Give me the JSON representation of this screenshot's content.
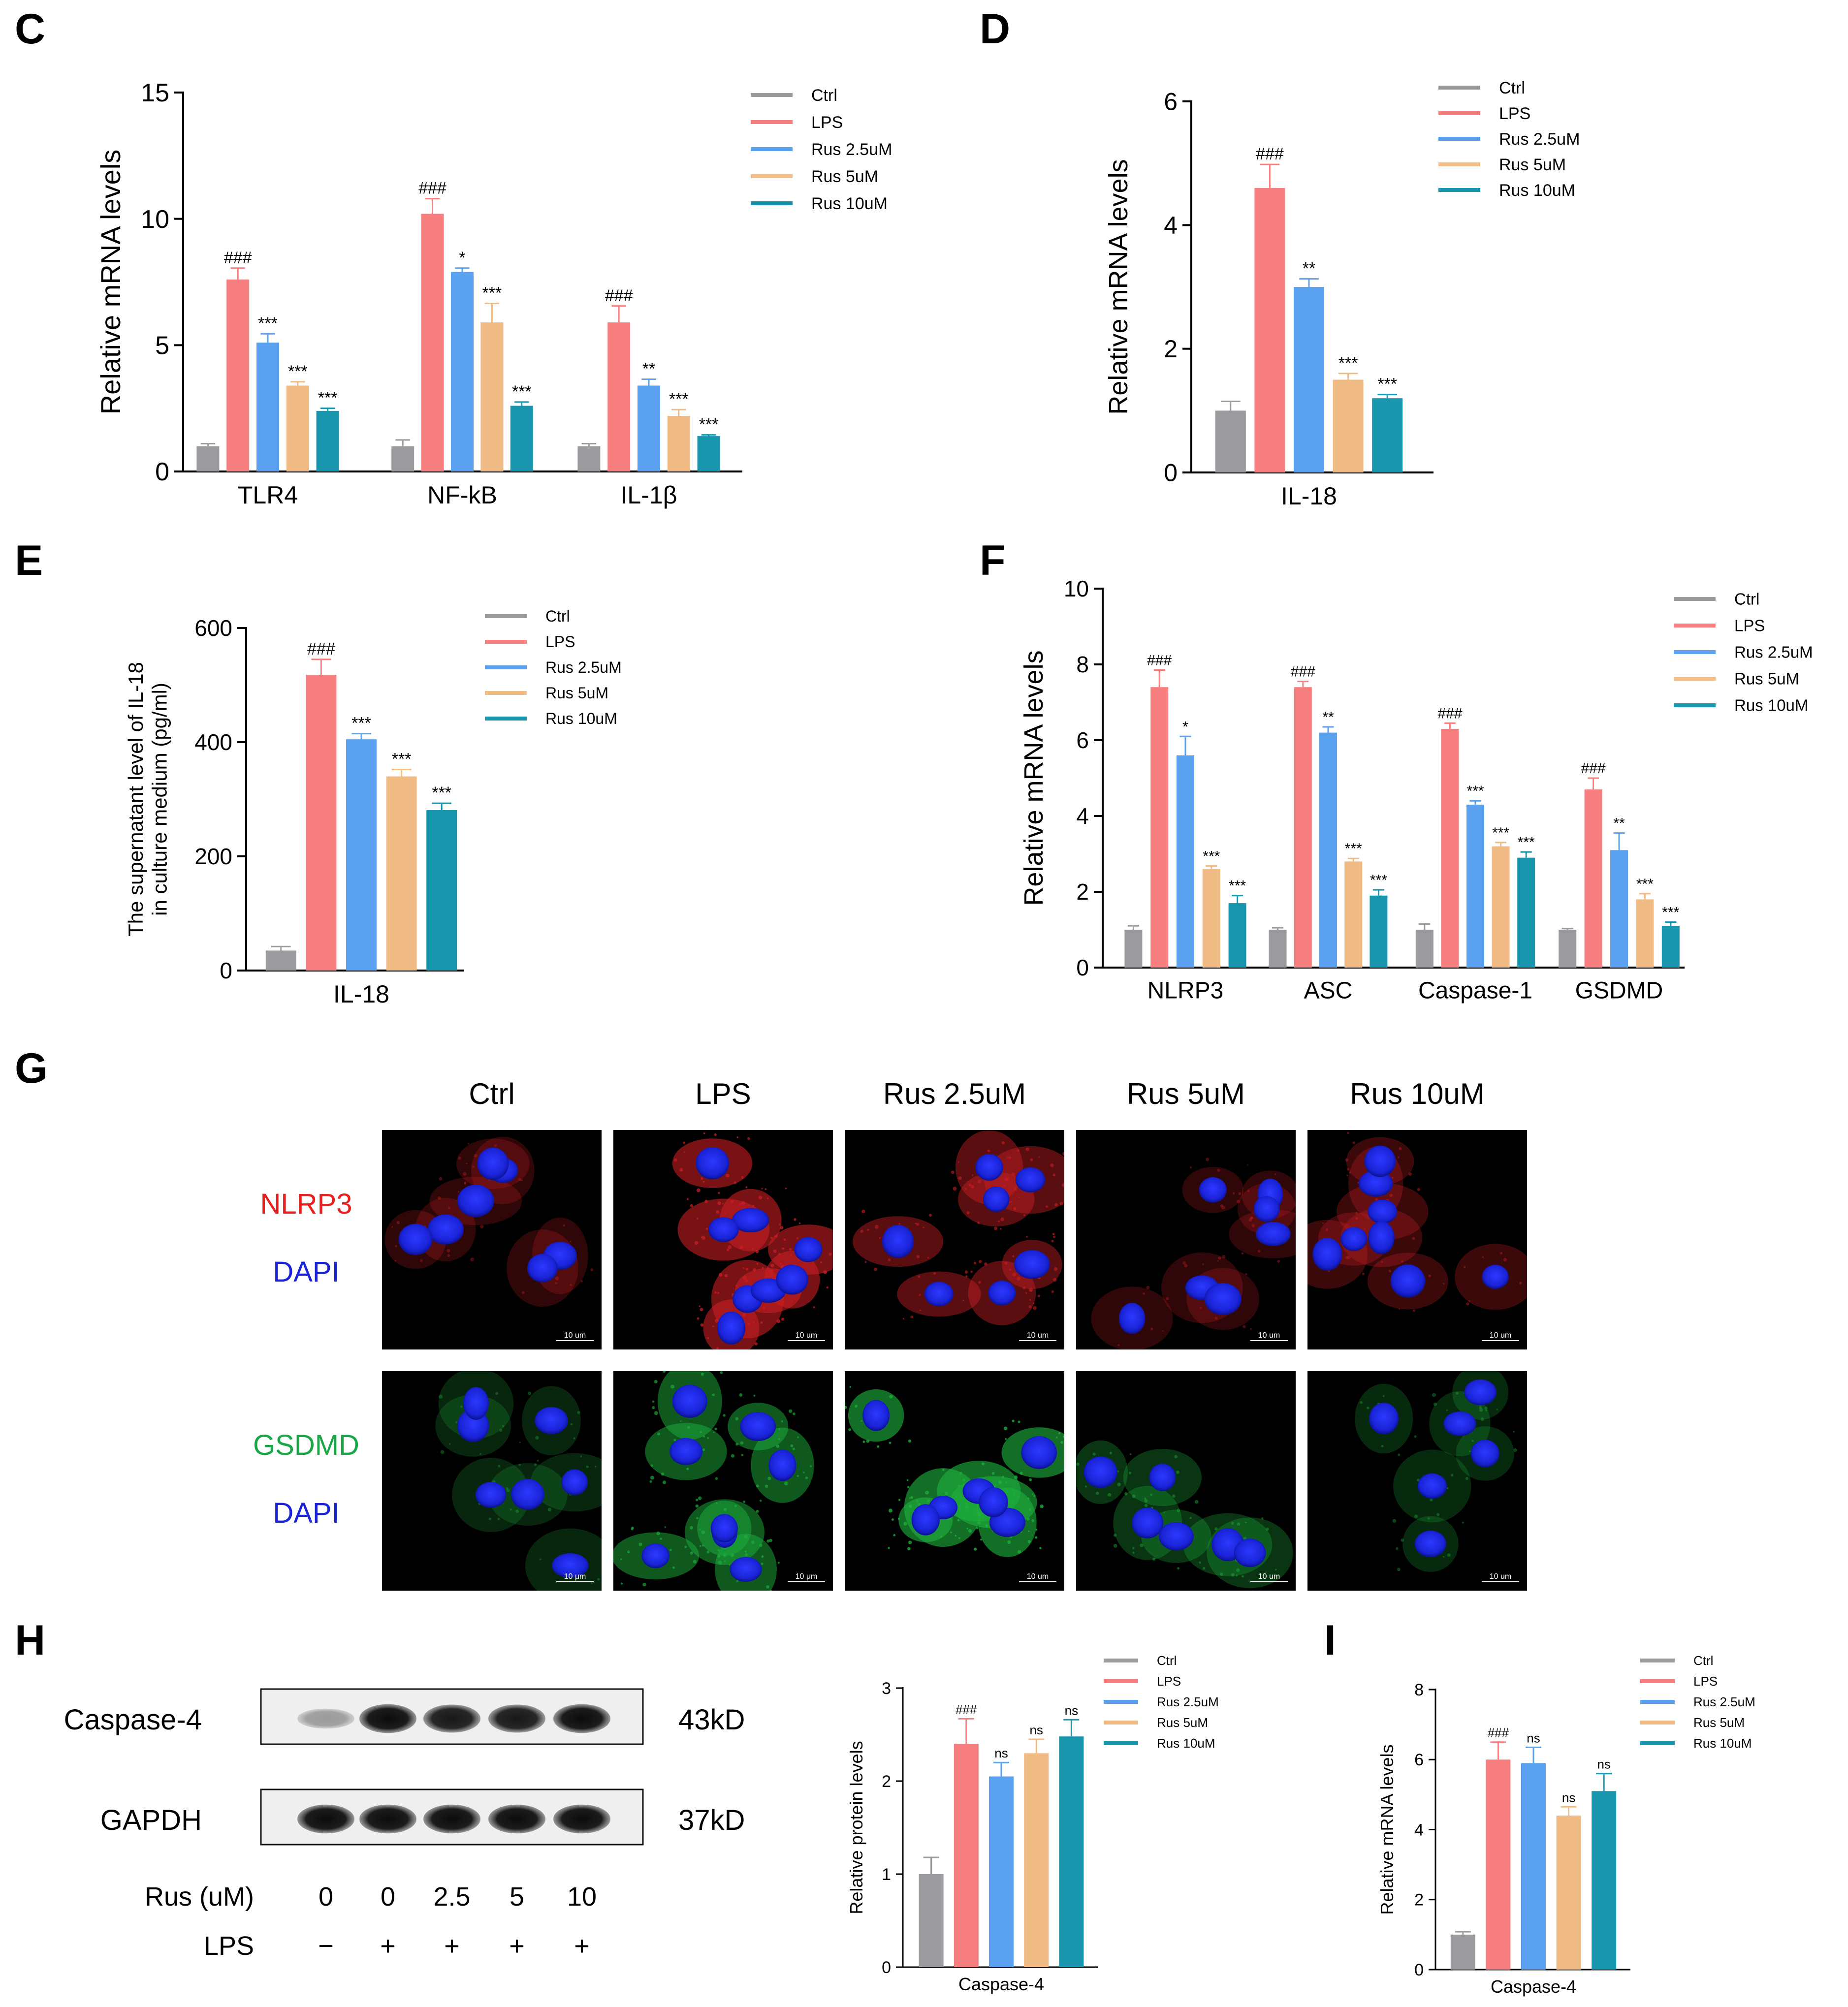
{
  "colors": {
    "Ctrl": "#9a9a9f",
    "LPS": "#f77f80",
    "Rus 2.5uM": "#5aa2ef",
    "Rus 5uM": "#f1bb85",
    "Rus 10uM": "#1896ad",
    "red": "#e8201f",
    "green": "#1aa646",
    "blue": "#1a23d6",
    "black": "#000000"
  },
  "legend_labels": [
    "Ctrl",
    "LPS",
    "Rus 2.5uM",
    "Rus 5uM",
    "Rus 10uM"
  ],
  "chart_data": [
    {
      "id": "C",
      "type": "bar",
      "panel_label": "C",
      "ylabel": "Relative  mRNA levels",
      "ylim": [
        0,
        15
      ],
      "yticks": [
        0,
        5,
        10,
        15
      ],
      "categories": [
        "TLR4",
        "NF-kB",
        "IL-1β"
      ],
      "series": [
        {
          "name": "Ctrl",
          "values": [
            1.0,
            1.0,
            1.0
          ],
          "err": [
            0.1,
            0.25,
            0.1
          ],
          "sig": [
            "",
            "",
            ""
          ]
        },
        {
          "name": "LPS",
          "values": [
            7.6,
            10.2,
            5.9
          ],
          "err": [
            0.45,
            0.6,
            0.65
          ],
          "sig": [
            "###",
            "###",
            "###"
          ]
        },
        {
          "name": "Rus 2.5uM",
          "values": [
            5.1,
            7.9,
            3.4
          ],
          "err": [
            0.35,
            0.15,
            0.25
          ],
          "sig": [
            "***",
            "*",
            "**"
          ]
        },
        {
          "name": "Rus 5uM",
          "values": [
            3.4,
            5.9,
            2.2
          ],
          "err": [
            0.15,
            0.75,
            0.25
          ],
          "sig": [
            "***",
            "***",
            "***"
          ]
        },
        {
          "name": "Rus 10uM",
          "values": [
            2.4,
            2.6,
            1.4
          ],
          "err": [
            0.1,
            0.15,
            0.05
          ],
          "sig": [
            "***",
            "***",
            "***"
          ]
        }
      ]
    },
    {
      "id": "D",
      "type": "bar",
      "panel_label": "D",
      "ylabel": "Relative  mRNA levels",
      "ylim": [
        0,
        6
      ],
      "yticks": [
        0,
        2,
        4,
        6
      ],
      "categories": [
        "IL-18"
      ],
      "series": [
        {
          "name": "Ctrl",
          "values": [
            1.0
          ],
          "err": [
            0.15
          ],
          "sig": [
            ""
          ]
        },
        {
          "name": "LPS",
          "values": [
            4.6
          ],
          "err": [
            0.38
          ],
          "sig": [
            "###"
          ]
        },
        {
          "name": "Rus 2.5uM",
          "values": [
            3.0
          ],
          "err": [
            0.13
          ],
          "sig": [
            "**"
          ]
        },
        {
          "name": "Rus 5uM",
          "values": [
            1.5
          ],
          "err": [
            0.1
          ],
          "sig": [
            "***"
          ]
        },
        {
          "name": "Rus 10uM",
          "values": [
            1.2
          ],
          "err": [
            0.06
          ],
          "sig": [
            "***"
          ]
        }
      ]
    },
    {
      "id": "E",
      "type": "bar",
      "panel_label": "E",
      "ylabel": "The supernatant level of IL-18",
      "ylabel2": "in culture medium (pg/ml)",
      "ylim": [
        0,
        600
      ],
      "yticks": [
        0,
        200,
        400,
        600
      ],
      "categories": [
        "IL-18"
      ],
      "series": [
        {
          "name": "Ctrl",
          "values": [
            35
          ],
          "err": [
            7
          ],
          "sig": [
            ""
          ]
        },
        {
          "name": "LPS",
          "values": [
            518
          ],
          "err": [
            27
          ],
          "sig": [
            "###"
          ]
        },
        {
          "name": "Rus 2.5uM",
          "values": [
            405
          ],
          "err": [
            10
          ],
          "sig": [
            "***"
          ]
        },
        {
          "name": "Rus 5uM",
          "values": [
            340
          ],
          "err": [
            12
          ],
          "sig": [
            "***"
          ]
        },
        {
          "name": "Rus 10uM",
          "values": [
            281
          ],
          "err": [
            12
          ],
          "sig": [
            "***"
          ]
        }
      ]
    },
    {
      "id": "F",
      "type": "bar",
      "panel_label": "F",
      "ylabel": "Relative  mRNA levels",
      "ylim": [
        0,
        10
      ],
      "yticks": [
        0,
        2,
        4,
        6,
        8,
        10
      ],
      "categories": [
        "NLRP3",
        "ASC",
        "Caspase-1",
        "GSDMD"
      ],
      "series": [
        {
          "name": "Ctrl",
          "values": [
            1.0,
            1.0,
            1.0,
            1.0
          ],
          "err": [
            0.1,
            0.05,
            0.15,
            0.03
          ],
          "sig": [
            "",
            "",
            "",
            ""
          ]
        },
        {
          "name": "LPS",
          "values": [
            7.4,
            7.4,
            6.3,
            4.7
          ],
          "err": [
            0.45,
            0.15,
            0.15,
            0.3
          ],
          "sig": [
            "###",
            "###",
            "###",
            "###"
          ]
        },
        {
          "name": "Rus 2.5uM",
          "values": [
            5.6,
            6.2,
            4.3,
            3.1
          ],
          "err": [
            0.5,
            0.15,
            0.1,
            0.45
          ],
          "sig": [
            "*",
            "**",
            "***",
            "**"
          ]
        },
        {
          "name": "Rus 5uM",
          "values": [
            2.6,
            2.8,
            3.2,
            1.8
          ],
          "err": [
            0.08,
            0.08,
            0.1,
            0.15
          ],
          "sig": [
            "***",
            "***",
            "***",
            "***"
          ]
        },
        {
          "name": "Rus 10uM",
          "values": [
            1.7,
            1.9,
            2.9,
            1.1
          ],
          "err": [
            0.2,
            0.15,
            0.15,
            0.1
          ],
          "sig": [
            "***",
            "***",
            "***",
            "***"
          ]
        }
      ]
    },
    {
      "id": "H",
      "type": "bar",
      "panel_label": "",
      "ylabel": "Relative protein levels",
      "ylim": [
        0,
        3
      ],
      "yticks": [
        0,
        1,
        2,
        3
      ],
      "categories": [
        "Caspase-4"
      ],
      "series": [
        {
          "name": "Ctrl",
          "values": [
            1.0
          ],
          "err": [
            0.18
          ],
          "sig": [
            ""
          ]
        },
        {
          "name": "LPS",
          "values": [
            2.4
          ],
          "err": [
            0.27
          ],
          "sig": [
            "###"
          ]
        },
        {
          "name": "Rus 2.5uM",
          "values": [
            2.05
          ],
          "err": [
            0.15
          ],
          "sig": [
            "ns"
          ]
        },
        {
          "name": "Rus 5uM",
          "values": [
            2.3
          ],
          "err": [
            0.15
          ],
          "sig": [
            "ns"
          ]
        },
        {
          "name": "Rus 10uM",
          "values": [
            2.48
          ],
          "err": [
            0.18
          ],
          "sig": [
            "ns"
          ]
        }
      ]
    },
    {
      "id": "I",
      "type": "bar",
      "panel_label": "I",
      "ylabel": "Relative  mRNA levels",
      "ylim": [
        0,
        8
      ],
      "yticks": [
        0,
        2,
        4,
        6,
        8
      ],
      "categories": [
        "Caspase-4"
      ],
      "series": [
        {
          "name": "Ctrl",
          "values": [
            1.0
          ],
          "err": [
            0.08
          ],
          "sig": [
            ""
          ]
        },
        {
          "name": "LPS",
          "values": [
            6.0
          ],
          "err": [
            0.5
          ],
          "sig": [
            "###"
          ]
        },
        {
          "name": "Rus 2.5uM",
          "values": [
            5.9
          ],
          "err": [
            0.45
          ],
          "sig": [
            "ns"
          ]
        },
        {
          "name": "Rus 5uM",
          "values": [
            4.4
          ],
          "err": [
            0.25
          ],
          "sig": [
            "ns"
          ]
        },
        {
          "name": "Rus 10uM",
          "values": [
            5.1
          ],
          "err": [
            0.5
          ],
          "sig": [
            "ns"
          ]
        }
      ]
    }
  ],
  "panel_G": {
    "label": "G",
    "columns": [
      "Ctrl",
      "LPS",
      "Rus 2.5uM",
      "Rus 5uM",
      "Rus 10uM"
    ],
    "rows": [
      {
        "stain": "NLRP3",
        "counter": "DAPI",
        "stain_color": "red",
        "intensity": [
          0.15,
          0.75,
          0.5,
          0.15,
          0.25
        ]
      },
      {
        "stain": "GSDMD",
        "counter": "DAPI",
        "stain_color": "green",
        "intensity": [
          0.12,
          0.6,
          0.8,
          0.25,
          0.15
        ]
      }
    ],
    "scale_labels": [
      "10 um",
      "10 um",
      "10 um",
      "10 um",
      "10 um",
      "10 μm",
      "10 μm",
      "10 um",
      "10 um",
      "10 um"
    ]
  },
  "panel_H": {
    "label": "H",
    "blots": [
      {
        "protein": "Caspase-4",
        "size": "43kD",
        "intensity": [
          0.35,
          0.95,
          0.9,
          0.9,
          0.95
        ]
      },
      {
        "protein": "GAPDH",
        "size": "37kD",
        "intensity": [
          0.95,
          0.95,
          0.95,
          0.95,
          0.95
        ]
      }
    ],
    "rus_label": "Rus (uM)",
    "rus_values": [
      "0",
      "0",
      "2.5",
      "5",
      "10"
    ],
    "lps_label": "LPS",
    "lps_values": [
      "−",
      "+",
      "+",
      "+",
      "+"
    ]
  }
}
